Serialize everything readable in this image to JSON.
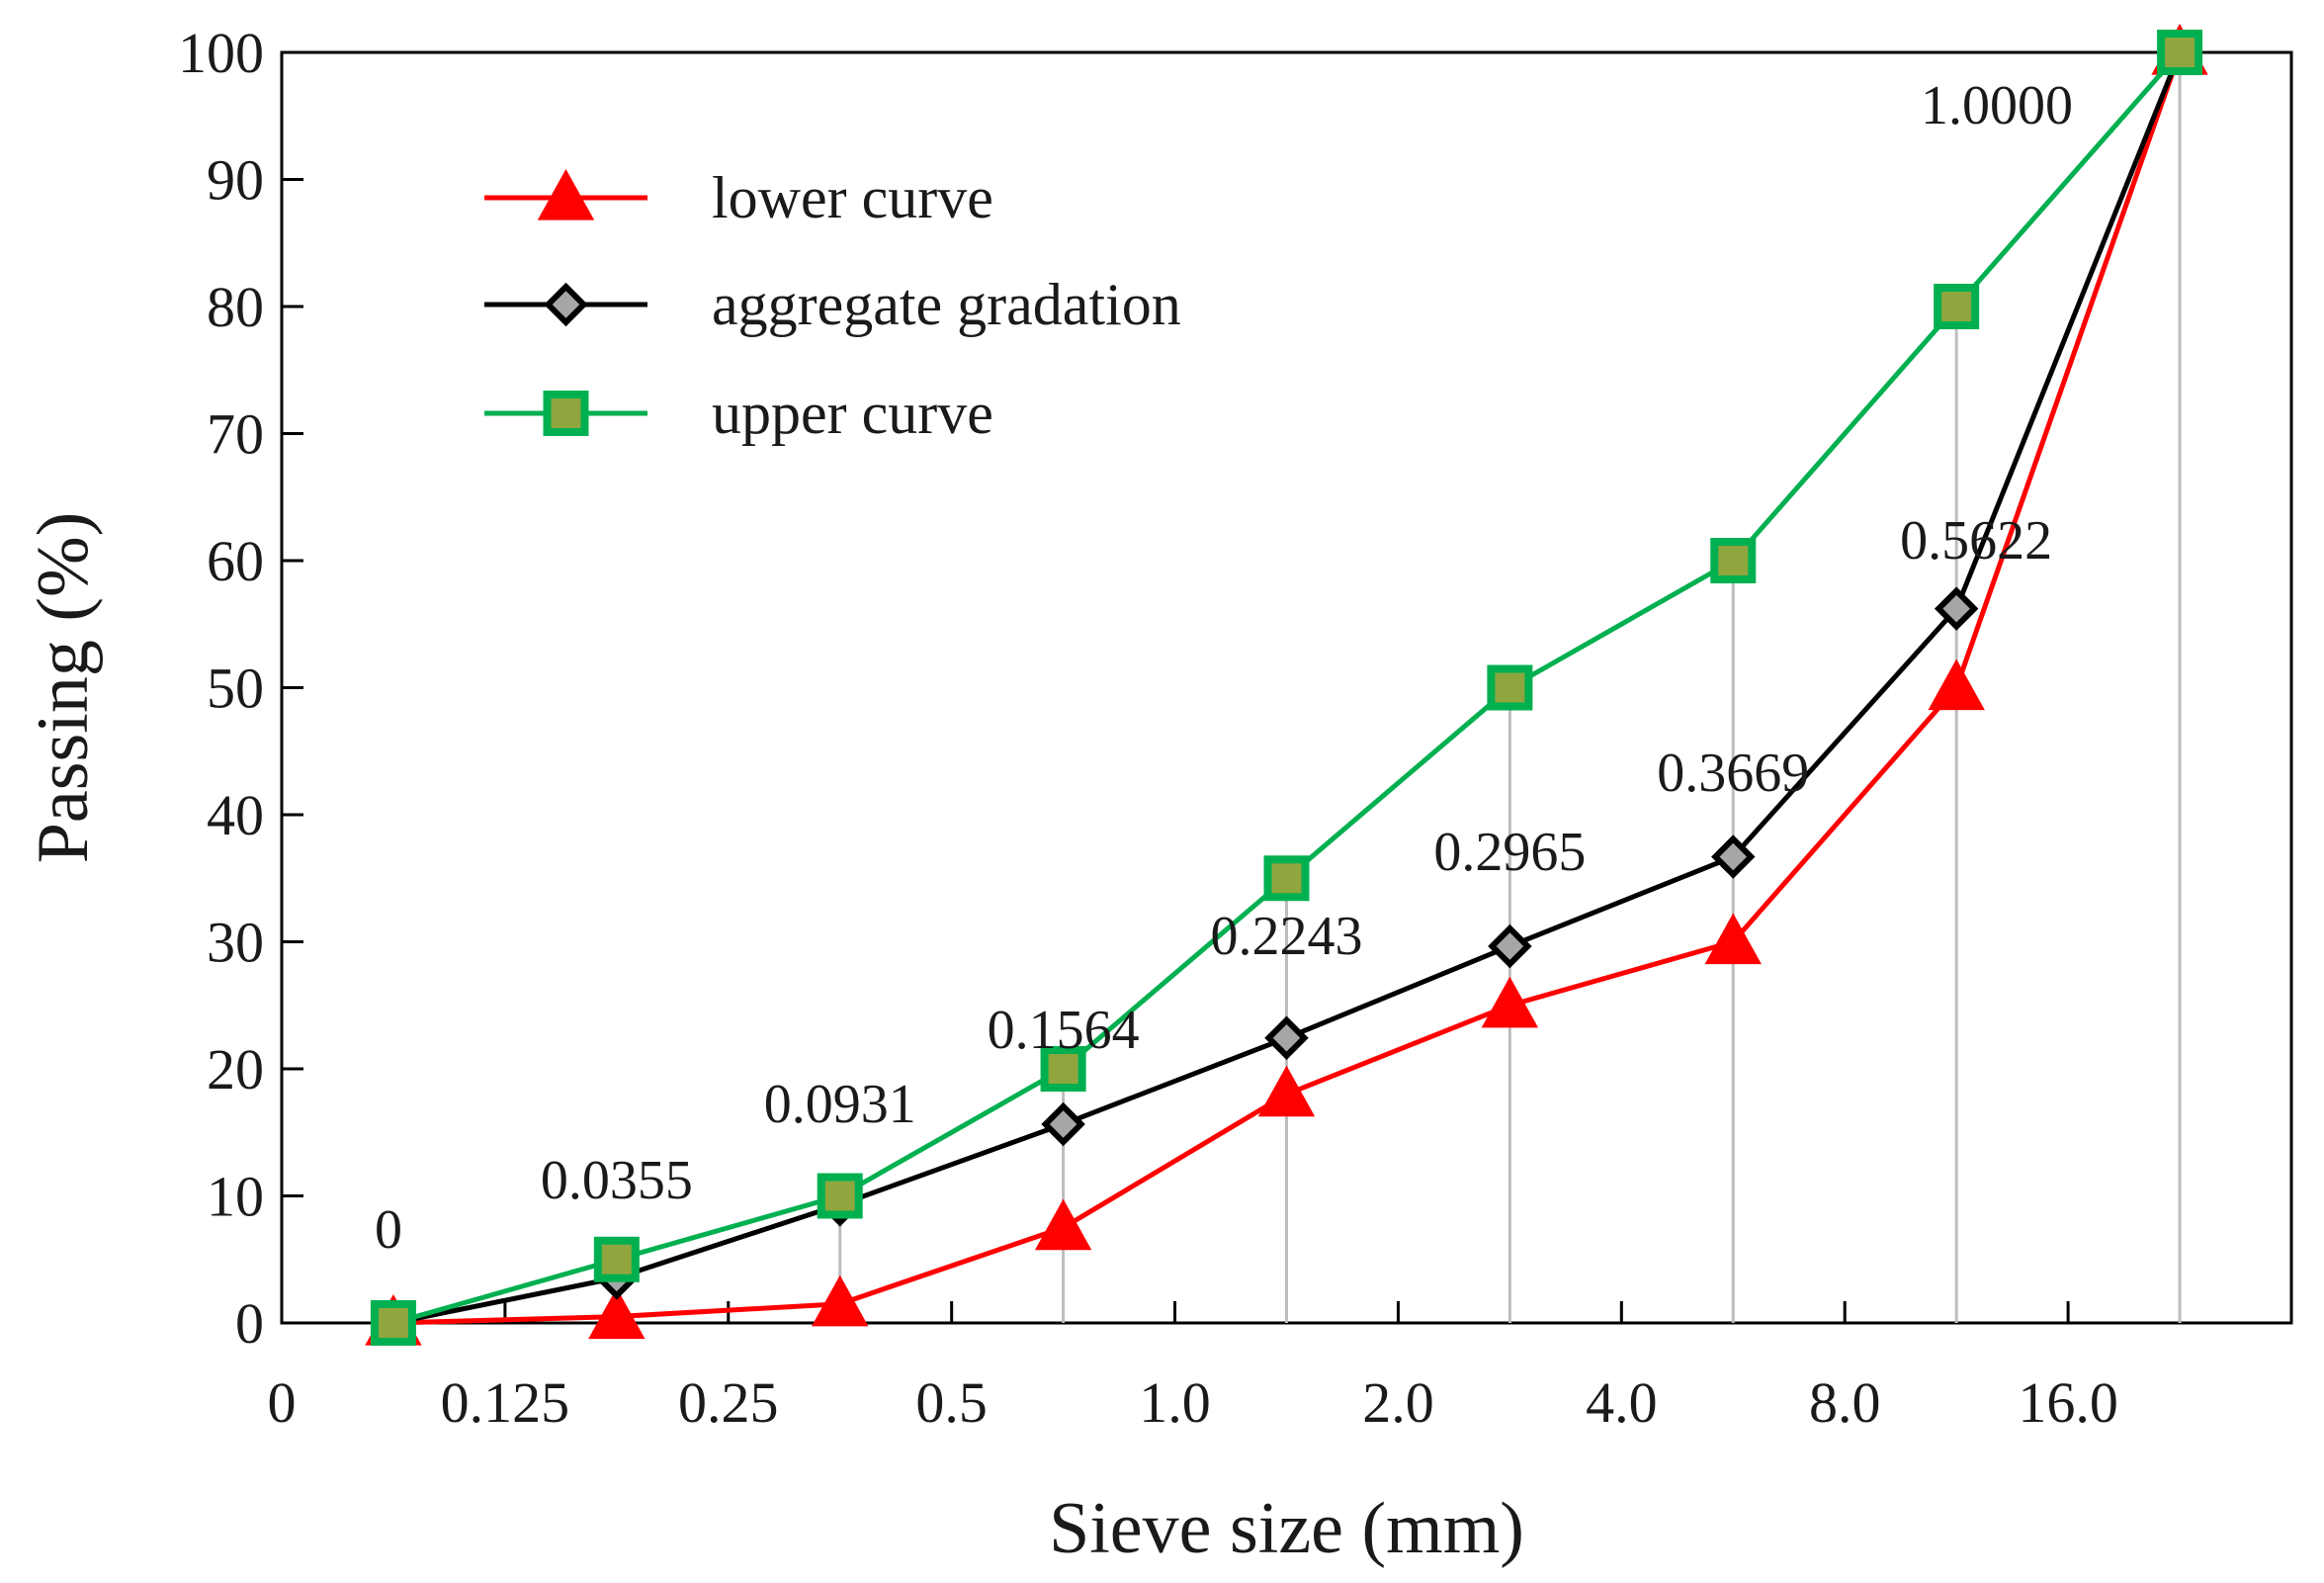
{
  "chart_data": {
    "type": "line",
    "title": "",
    "xlabel": "Sieve size (mm)",
    "ylabel": "Passing (%)",
    "ylim": [
      0,
      100
    ],
    "yticks": [
      0,
      10,
      20,
      30,
      40,
      50,
      60,
      70,
      80,
      90,
      100
    ],
    "x_tick_labels": [
      "0",
      "0.125",
      "0.25",
      "0.5",
      "1.0",
      "2.0",
      "4.0",
      "8.0",
      "16.0"
    ],
    "x_positions": [
      0.5,
      1.5,
      2.5,
      3.5,
      4.5,
      5.5,
      6.5,
      7.5,
      8.5
    ],
    "grid": false,
    "legend_position": "top-left",
    "series": [
      {
        "name": "lower curve",
        "color": "#ff0000",
        "marker": "triangle",
        "marker_fill": "#ff0000",
        "values": [
          0,
          0.5,
          1.5,
          7.5,
          18,
          25,
          30,
          50,
          100
        ]
      },
      {
        "name": "aggregate gradation",
        "color": "#000000",
        "marker": "diamond",
        "marker_fill": "#a6a6a6",
        "values": [
          0,
          3.55,
          9.31,
          15.64,
          22.43,
          29.65,
          36.69,
          56.22,
          100
        ]
      },
      {
        "name": "upper curve",
        "color": "#00b050",
        "marker": "square",
        "marker_fill": "#8fa63f",
        "values": [
          0,
          5,
          10,
          20,
          35,
          50,
          60,
          80,
          100
        ]
      }
    ],
    "annotations": [
      "0",
      "0.0355",
      "0.0931",
      "0.1564",
      "0.2243",
      "0.2965",
      "0.3669",
      "0.5622",
      "1.0000"
    ]
  }
}
